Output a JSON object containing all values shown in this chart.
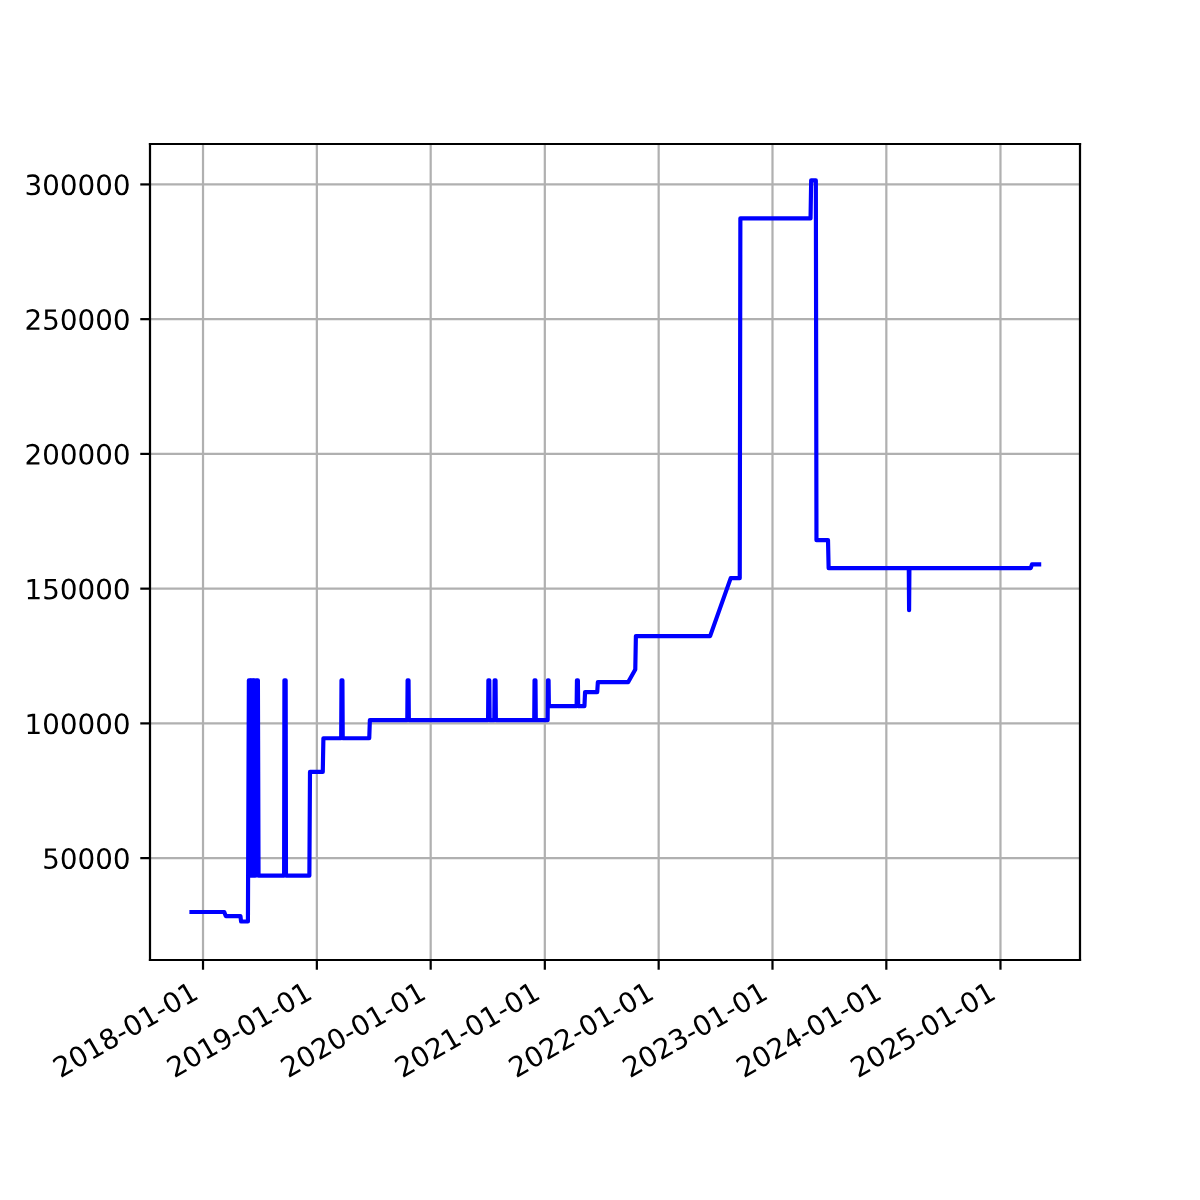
{
  "chart_data": {
    "type": "line",
    "x": [
      "2017-11-25",
      "2018-03-10",
      "2018-03-15",
      "2018-05-01",
      "2018-05-03",
      "2018-05-25",
      "2018-05-28",
      "2018-06-01",
      "2018-06-02",
      "2018-06-05",
      "2018-06-09",
      "2018-06-10",
      "2018-06-13",
      "2018-06-17",
      "2018-06-18",
      "2018-06-21",
      "2018-06-26",
      "2018-06-28",
      "2018-09-18",
      "2018-09-19",
      "2018-09-23",
      "2018-09-24",
      "2018-12-08",
      "2018-12-10",
      "2019-01-20",
      "2019-01-22",
      "2019-03-20",
      "2019-03-21",
      "2019-03-24",
      "2019-03-25",
      "2019-06-18",
      "2019-06-20",
      "2019-10-18",
      "2019-10-19",
      "2019-10-22",
      "2019-10-23",
      "2020-07-03",
      "2020-07-04",
      "2020-07-07",
      "2020-07-08",
      "2020-07-23",
      "2020-07-24",
      "2020-07-27",
      "2020-07-28",
      "2020-11-28",
      "2020-11-29",
      "2020-12-02",
      "2020-12-03",
      "2021-01-10",
      "2021-01-11",
      "2021-01-13",
      "2021-01-14",
      "2021-04-13",
      "2021-04-14",
      "2021-04-17",
      "2021-04-18",
      "2021-05-08",
      "2021-05-10",
      "2021-06-18",
      "2021-06-20",
      "2021-09-25",
      "2021-10-18",
      "2021-10-20",
      "2022-06-15",
      "2022-08-20",
      "2022-09-18",
      "2022-09-20",
      "2023-05-03",
      "2023-05-05",
      "2023-05-20",
      "2023-05-22",
      "2023-06-28",
      "2023-06-30",
      "2024-03-13",
      "2024-03-14",
      "2024-03-15",
      "2025-04-08",
      "2025-04-12",
      "2025-05-05"
    ],
    "series": [
      {
        "color": "#0000ff",
        "values": [
          30000,
          30000,
          28500,
          28500,
          26500,
          26500,
          116000,
          116000,
          43500,
          116000,
          116000,
          43500,
          116000,
          116000,
          43500,
          116000,
          116000,
          43500,
          43500,
          116000,
          116000,
          43500,
          43500,
          82000,
          82000,
          94500,
          94500,
          116000,
          116000,
          94500,
          94500,
          101200,
          101200,
          116000,
          116000,
          101200,
          101200,
          116000,
          116000,
          101200,
          101200,
          116000,
          116000,
          101200,
          101200,
          116000,
          116000,
          101200,
          101200,
          116000,
          116000,
          106400,
          106400,
          116000,
          116000,
          106400,
          106400,
          111600,
          111600,
          115300,
          115300,
          120000,
          132400,
          132400,
          153900,
          153900,
          287400,
          287400,
          301500,
          301500,
          168000,
          168000,
          157600,
          157600,
          142000,
          157600,
          157600,
          159000,
          159000
        ]
      }
    ],
    "xlim": [
      "2017-07-15",
      "2025-09-13"
    ],
    "ylim": [
      12200,
      315000
    ],
    "xticks": [
      "2018-01-01",
      "2019-01-01",
      "2020-01-01",
      "2021-01-01",
      "2022-01-01",
      "2023-01-01",
      "2024-01-01",
      "2025-01-01"
    ],
    "yticks": [
      50000,
      100000,
      150000,
      200000,
      250000,
      300000
    ],
    "grid": true
  }
}
